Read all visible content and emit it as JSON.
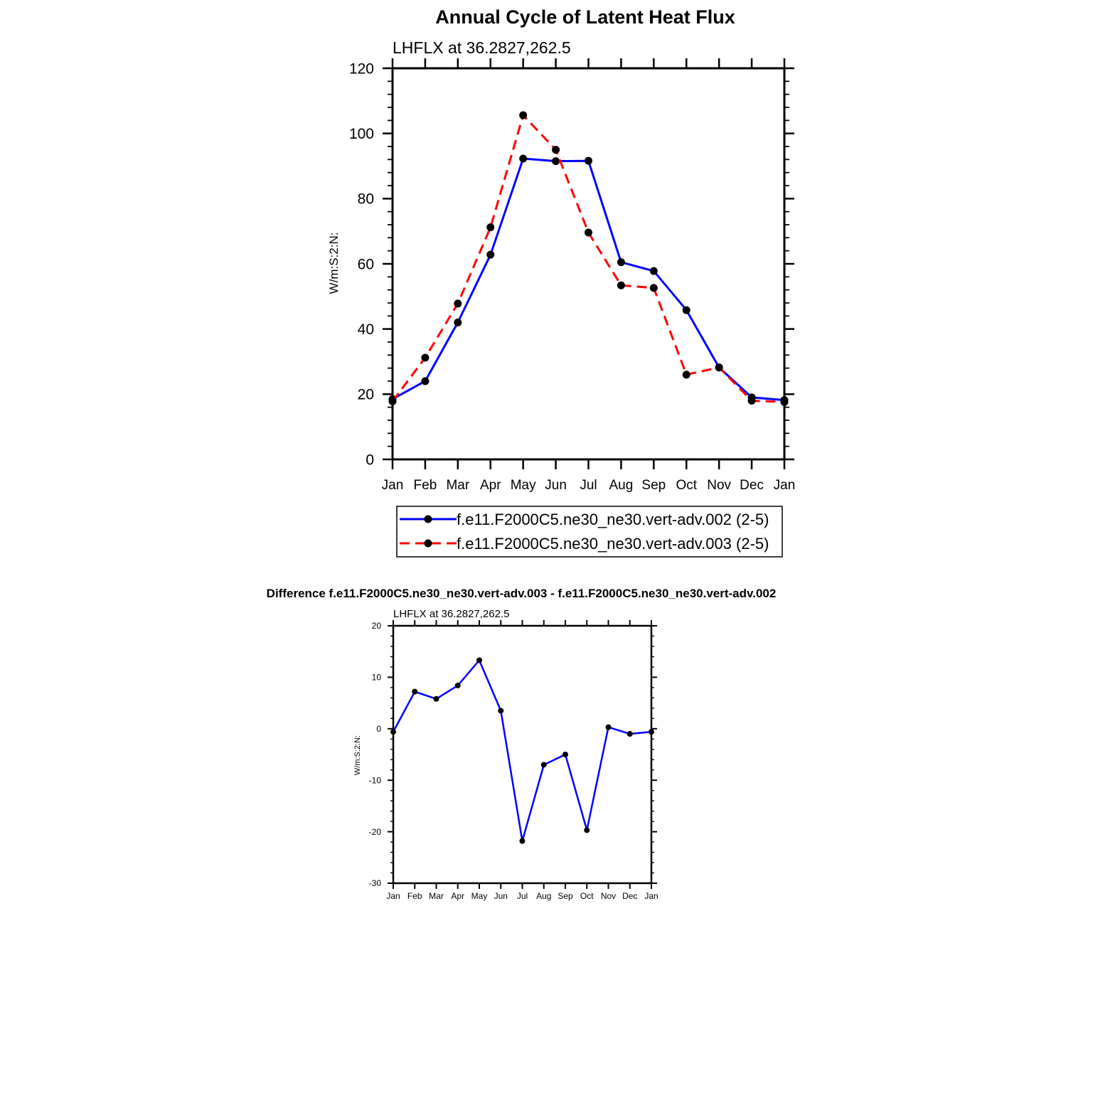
{
  "chart_data": [
    {
      "type": "line",
      "title": "Annual Cycle of Latent Heat Flux",
      "subtitle": "LHFLX at 36.2827,262.5",
      "xlabel": "",
      "ylabel": "W/m:S:2:N:",
      "categories": [
        "Jan",
        "Feb",
        "Mar",
        "Apr",
        "May",
        "Jun",
        "Jul",
        "Aug",
        "Sep",
        "Oct",
        "Nov",
        "Dec",
        "Jan"
      ],
      "ylim": [
        0,
        120
      ],
      "yticks": [
        "0",
        "20",
        "40",
        "60",
        "80",
        "100",
        "120"
      ],
      "grid": false,
      "legend_position": "bottom",
      "series": [
        {
          "name": "f.e11.F2000C5.ne30_ne30.vert-adv.002 (2-5)",
          "color": "#0000ff",
          "dash": "solid",
          "values": [
            18.5,
            24,
            42,
            62.8,
            92.3,
            91.5,
            91.6,
            60.5,
            57.8,
            45.8,
            28.2,
            19,
            18.2
          ]
        },
        {
          "name": "f.e11.F2000C5.ne30_ne30.vert-adv.003 (2-5)",
          "color": "#ff0000",
          "dash": "dashed",
          "values": [
            17.8,
            31.2,
            47.8,
            71.2,
            105.6,
            95,
            69.6,
            53.4,
            52.6,
            26,
            28.2,
            18,
            17.6
          ]
        }
      ]
    },
    {
      "type": "line",
      "title": "Difference f.e11.F2000C5.ne30_ne30.vert-adv.003 - f.e11.F2000C5.ne30_ne30.vert-adv.002",
      "subtitle": "LHFLX at 36.2827,262.5",
      "xlabel": "",
      "ylabel": "W/m:S:2:N:",
      "categories": [
        "Jan",
        "Feb",
        "Mar",
        "Apr",
        "May",
        "Jun",
        "Jul",
        "Aug",
        "Sep",
        "Oct",
        "Nov",
        "Dec",
        "Jan"
      ],
      "ylim": [
        -30,
        20
      ],
      "yticks": [
        "-30",
        "-20",
        "-10",
        "0",
        "10",
        "20"
      ],
      "grid": false,
      "series": [
        {
          "name": "difference",
          "color": "#0000ff",
          "dash": "solid",
          "values": [
            -0.6,
            7.2,
            5.8,
            8.4,
            13.3,
            3.5,
            -21.8,
            -7,
            -5,
            -19.7,
            0.3,
            -1,
            -0.6
          ]
        }
      ]
    }
  ]
}
